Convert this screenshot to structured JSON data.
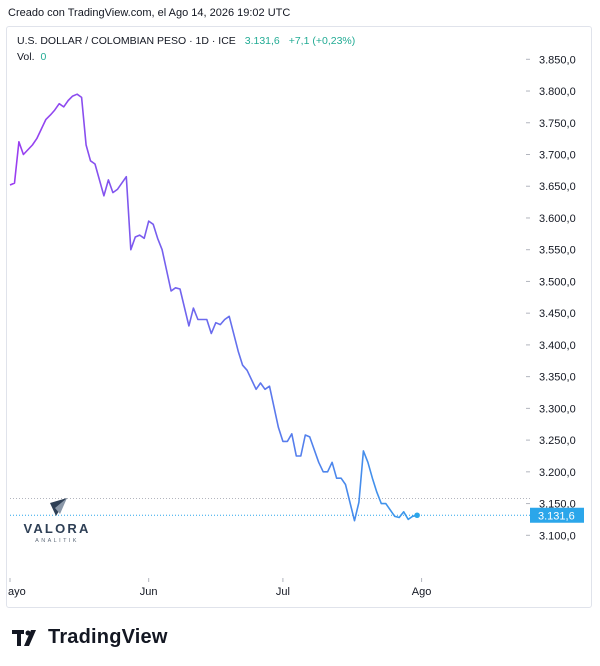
{
  "created_text": "Creado con TradingView.com, el Ago 14, 2026 19:02 UTC",
  "legend": {
    "symbol": "U.S. DOLLAR / COLOMBIAN PESO · 1D · ICE",
    "last": "3.131,6",
    "change": "+7,1 (+0,23%)",
    "vol_label": "Vol.",
    "vol_value": "0"
  },
  "watermark": {
    "name": "VALORA",
    "sub": "ANALITIK"
  },
  "footer": {
    "brand": "TradingView"
  },
  "colors": {
    "line_start": "#9b3df0",
    "line_end": "#2ba6ea",
    "price_tag": "#2ba6ea",
    "change": "#22ab94"
  },
  "chart_data": {
    "type": "line",
    "title": "U.S. DOLLAR / COLOMBIAN PESO",
    "ylim": [
      3080,
      3870
    ],
    "yticks": [
      3850,
      3800,
      3750,
      3700,
      3650,
      3600,
      3550,
      3500,
      3450,
      3400,
      3350,
      3300,
      3250,
      3200,
      3150,
      3100
    ],
    "x_labels": [
      {
        "label": "ayo",
        "date": "2026-05-01"
      },
      {
        "label": "Jun",
        "date": "2026-06-01"
      },
      {
        "label": "Jul",
        "date": "2026-07-01"
      },
      {
        "label": "Ago",
        "date": "2026-08-01"
      }
    ],
    "x_range": [
      "2026-05-01",
      "2026-08-23"
    ],
    "last_price": 3131.6,
    "last_price_label": "3.131,6",
    "reference_level": 3158,
    "series": [
      {
        "points": [
          [
            "2026-05-01",
            3652
          ],
          [
            "2026-05-02",
            3655
          ],
          [
            "2026-05-03",
            3720
          ],
          [
            "2026-05-04",
            3700
          ],
          [
            "2026-05-06",
            3715
          ],
          [
            "2026-05-07",
            3725
          ],
          [
            "2026-05-08",
            3740
          ],
          [
            "2026-05-09",
            3755
          ],
          [
            "2026-05-10",
            3762
          ],
          [
            "2026-05-11",
            3770
          ],
          [
            "2026-05-12",
            3780
          ],
          [
            "2026-05-13",
            3775
          ],
          [
            "2026-05-14",
            3785
          ],
          [
            "2026-05-15",
            3792
          ],
          [
            "2026-05-16",
            3795
          ],
          [
            "2026-05-17",
            3790
          ],
          [
            "2026-05-18",
            3715
          ],
          [
            "2026-05-19",
            3690
          ],
          [
            "2026-05-20",
            3685
          ],
          [
            "2026-05-22",
            3635
          ],
          [
            "2026-05-23",
            3660
          ],
          [
            "2026-05-24",
            3640
          ],
          [
            "2026-05-25",
            3645
          ],
          [
            "2026-05-27",
            3665
          ],
          [
            "2026-05-28",
            3550
          ],
          [
            "2026-05-29",
            3570
          ],
          [
            "2026-05-30",
            3573
          ],
          [
            "2026-05-31",
            3568
          ],
          [
            "2026-06-01",
            3595
          ],
          [
            "2026-06-02",
            3590
          ],
          [
            "2026-06-03",
            3568
          ],
          [
            "2026-06-04",
            3550
          ],
          [
            "2026-06-06",
            3485
          ],
          [
            "2026-06-07",
            3490
          ],
          [
            "2026-06-08",
            3488
          ],
          [
            "2026-06-10",
            3430
          ],
          [
            "2026-06-11",
            3458
          ],
          [
            "2026-06-12",
            3440
          ],
          [
            "2026-06-14",
            3440
          ],
          [
            "2026-06-15",
            3418
          ],
          [
            "2026-06-16",
            3435
          ],
          [
            "2026-06-17",
            3432
          ],
          [
            "2026-06-18",
            3440
          ],
          [
            "2026-06-19",
            3445
          ],
          [
            "2026-06-21",
            3390
          ],
          [
            "2026-06-22",
            3368
          ],
          [
            "2026-06-23",
            3360
          ],
          [
            "2026-06-25",
            3330
          ],
          [
            "2026-06-26",
            3340
          ],
          [
            "2026-06-27",
            3330
          ],
          [
            "2026-06-28",
            3335
          ],
          [
            "2026-06-30",
            3270
          ],
          [
            "2026-07-01",
            3248
          ],
          [
            "2026-07-02",
            3248
          ],
          [
            "2026-07-03",
            3260
          ],
          [
            "2026-07-04",
            3225
          ],
          [
            "2026-07-05",
            3225
          ],
          [
            "2026-07-06",
            3258
          ],
          [
            "2026-07-07",
            3255
          ],
          [
            "2026-07-09",
            3215
          ],
          [
            "2026-07-10",
            3200
          ],
          [
            "2026-07-11",
            3200
          ],
          [
            "2026-07-12",
            3215
          ],
          [
            "2026-07-13",
            3190
          ],
          [
            "2026-07-14",
            3190
          ],
          [
            "2026-07-15",
            3180
          ],
          [
            "2026-07-17",
            3123
          ],
          [
            "2026-07-18",
            3152
          ],
          [
            "2026-07-19",
            3233
          ],
          [
            "2026-07-20",
            3215
          ],
          [
            "2026-07-21",
            3190
          ],
          [
            "2026-07-22",
            3168
          ],
          [
            "2026-07-23",
            3150
          ],
          [
            "2026-07-24",
            3150
          ],
          [
            "2026-07-26",
            3130
          ],
          [
            "2026-07-27",
            3128
          ],
          [
            "2026-07-28",
            3137
          ],
          [
            "2026-07-29",
            3125
          ],
          [
            "2026-07-30",
            3130
          ],
          [
            "2026-07-31",
            3131.6
          ]
        ]
      }
    ]
  }
}
